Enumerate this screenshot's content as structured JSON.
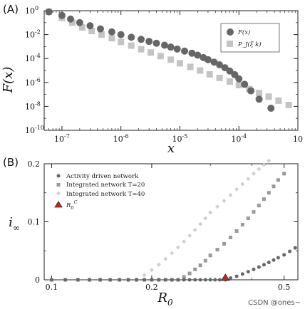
{
  "chart_data": [
    {
      "panel": "(A)",
      "type": "scatter",
      "xscale": "log",
      "yscale": "log",
      "xlabel": "x",
      "ylabel": "F(x)",
      "xlim": [
        5e-08,
        0.001
      ],
      "ylim": [
        1e-10,
        1
      ],
      "xticks": [
        {
          "value": 1e-07,
          "base": "10",
          "exp": "-7"
        },
        {
          "value": 1e-06,
          "base": "10",
          "exp": "-6"
        },
        {
          "value": 1e-05,
          "base": "10",
          "exp": "-5"
        },
        {
          "value": 0.0001,
          "base": "10",
          "exp": "-4"
        },
        {
          "value": 0.001,
          "base": "10",
          "exp": ""
        }
      ],
      "yticks": [
        {
          "value": 1,
          "base": "10",
          "exp": "0"
        },
        {
          "value": 0.01,
          "base": "10",
          "exp": "-2"
        },
        {
          "value": 0.0001,
          "base": "10",
          "exp": "-4"
        },
        {
          "value": 1e-06,
          "base": "10",
          "exp": "-6"
        },
        {
          "value": 1e-08,
          "base": "10",
          "exp": "-8"
        },
        {
          "value": 1e-10,
          "base": "10",
          "exp": "-10"
        }
      ],
      "legend_position": "top-right",
      "series": [
        {
          "name": "F(x)",
          "marker": "circle",
          "color": "#666666",
          "x": [
            6e-08,
            1e-07,
            1.4e-07,
            2e-07,
            3e-07,
            4.5e-07,
            7e-07,
            1e-06,
            1.5e-06,
            2.2e-06,
            3e-06,
            4e-06,
            5.5e-06,
            7e-06,
            9e-06,
            1.2e-05,
            1.6e-05,
            2e-05,
            2.5e-05,
            3e-05,
            3.8e-05,
            4.7e-05,
            5.8e-05,
            7e-05,
            8.5e-05,
            0.0001,
            0.000125,
            0.00016,
            0.00022,
            0.00035
          ],
          "y": [
            0.8,
            0.4,
            0.2,
            0.1,
            0.055,
            0.03,
            0.017,
            0.01,
            0.006,
            0.004,
            0.0027,
            0.0019,
            0.0013,
            0.0009,
            0.00062,
            0.00042,
            0.00028,
            0.00019,
            0.00012,
            8e-05,
            5e-05,
            3e-05,
            1.7e-05,
            9e-06,
            4.5e-06,
            2e-06,
            7e-07,
            2e-07,
            4e-08,
            7e-09
          ]
        },
        {
          "name": "P_J(ξ k)",
          "marker": "square",
          "color": "#c4c4c4",
          "x": [
            6e-08,
            1e-07,
            1.5e-07,
            2.2e-07,
            3.2e-07,
            4.7e-07,
            7e-07,
            1e-06,
            1.5e-06,
            2.2e-06,
            3.2e-06,
            4.7e-06,
            7e-06,
            1e-05,
            1.5e-05,
            2.2e-05,
            3.2e-05,
            4.7e-05,
            7e-05,
            0.0001,
            0.00015,
            0.00022,
            0.00032,
            0.00047,
            0.0007
          ],
          "y": [
            0.8,
            0.25,
            0.1,
            0.04,
            0.02,
            0.01,
            0.005,
            0.0025,
            0.0012,
            0.0006,
            0.00032,
            0.00016,
            8e-05,
            4e-05,
            2e-05,
            1e-05,
            4.8e-06,
            2.4e-06,
            1.2e-06,
            6e-07,
            2.8e-07,
            1.3e-07,
            6.5e-08,
            3e-08,
            1.3e-08
          ]
        }
      ]
    },
    {
      "panel": "(B)",
      "type": "scatter",
      "xscale": "log",
      "yscale": "linear",
      "xlabel": "R",
      "xlabel_sub": "0",
      "ylabel": "i",
      "ylabel_sub": "∞",
      "xlim": [
        0.095,
        0.55
      ],
      "ylim": [
        0,
        0.2
      ],
      "xticks": [
        0.1,
        0.2,
        0.5
      ],
      "xtick_labels": [
        "0.1",
        "0.2",
        "0.5"
      ],
      "yticks": [
        0,
        0.1,
        0.2
      ],
      "ytick_labels": [
        "0",
        "0.1",
        "0.2"
      ],
      "legend_position": "top-left",
      "critical_point": {
        "name": "R",
        "name_sub": "0",
        "name_sup": "C",
        "x": 0.333,
        "y": 0,
        "color": "#cc2222"
      },
      "series": [
        {
          "name": "Activity driven network",
          "marker": "circle",
          "color": "#666666",
          "x": [
            0.1,
            0.11,
            0.12,
            0.13,
            0.14,
            0.15,
            0.16,
            0.17,
            0.18,
            0.19,
            0.2,
            0.21,
            0.22,
            0.23,
            0.24,
            0.25,
            0.26,
            0.27,
            0.28,
            0.29,
            0.3,
            0.31,
            0.32,
            0.333,
            0.345,
            0.36,
            0.375,
            0.39,
            0.405,
            0.42,
            0.435,
            0.45,
            0.465,
            0.48,
            0.5,
            0.52,
            0.54
          ],
          "y": [
            0,
            0,
            0,
            0,
            0,
            0,
            0,
            0,
            0,
            0,
            0,
            0,
            0,
            0,
            0,
            0,
            0,
            0,
            0,
            0,
            0,
            0,
            0,
            0,
            0.003,
            0.006,
            0.01,
            0.014,
            0.018,
            0.022,
            0.026,
            0.03,
            0.034,
            0.038,
            0.043,
            0.049,
            0.055
          ]
        },
        {
          "name": "Integrated network T=20",
          "marker": "square",
          "color": "#999999",
          "x": [
            0.1,
            0.11,
            0.12,
            0.13,
            0.14,
            0.15,
            0.16,
            0.17,
            0.18,
            0.19,
            0.2,
            0.21,
            0.22,
            0.23,
            0.24,
            0.25,
            0.26,
            0.27,
            0.28,
            0.29,
            0.3,
            0.315,
            0.33,
            0.345,
            0.36,
            0.375,
            0.39,
            0.405,
            0.42,
            0.435,
            0.45,
            0.465,
            0.48,
            0.5
          ],
          "y": [
            0,
            0,
            0,
            0,
            0,
            0,
            0,
            0,
            0,
            0,
            0,
            0,
            0,
            0,
            0,
            0.005,
            0.011,
            0.018,
            0.025,
            0.033,
            0.042,
            0.052,
            0.062,
            0.073,
            0.084,
            0.095,
            0.106,
            0.117,
            0.128,
            0.139,
            0.15,
            0.161,
            0.172,
            0.183
          ]
        },
        {
          "name": "Integrated network T=40",
          "marker": "diamond",
          "color": "#d0d0d0",
          "x": [
            0.1,
            0.11,
            0.12,
            0.13,
            0.14,
            0.15,
            0.16,
            0.17,
            0.18,
            0.19,
            0.2,
            0.21,
            0.22,
            0.23,
            0.24,
            0.25,
            0.26,
            0.27,
            0.28,
            0.29,
            0.3,
            0.315,
            0.33,
            0.345,
            0.36,
            0.375,
            0.39,
            0.405,
            0.42,
            0.435,
            0.45
          ],
          "y": [
            0,
            0,
            0,
            0,
            0,
            0,
            0,
            0,
            0,
            0.008,
            0.017,
            0.026,
            0.036,
            0.046,
            0.056,
            0.066,
            0.076,
            0.086,
            0.096,
            0.106,
            0.116,
            0.126,
            0.136,
            0.146,
            0.156,
            0.165,
            0.174,
            0.183,
            0.191,
            0.198,
            0.205
          ]
        }
      ]
    }
  ],
  "watermark": "CSDN @ones~"
}
